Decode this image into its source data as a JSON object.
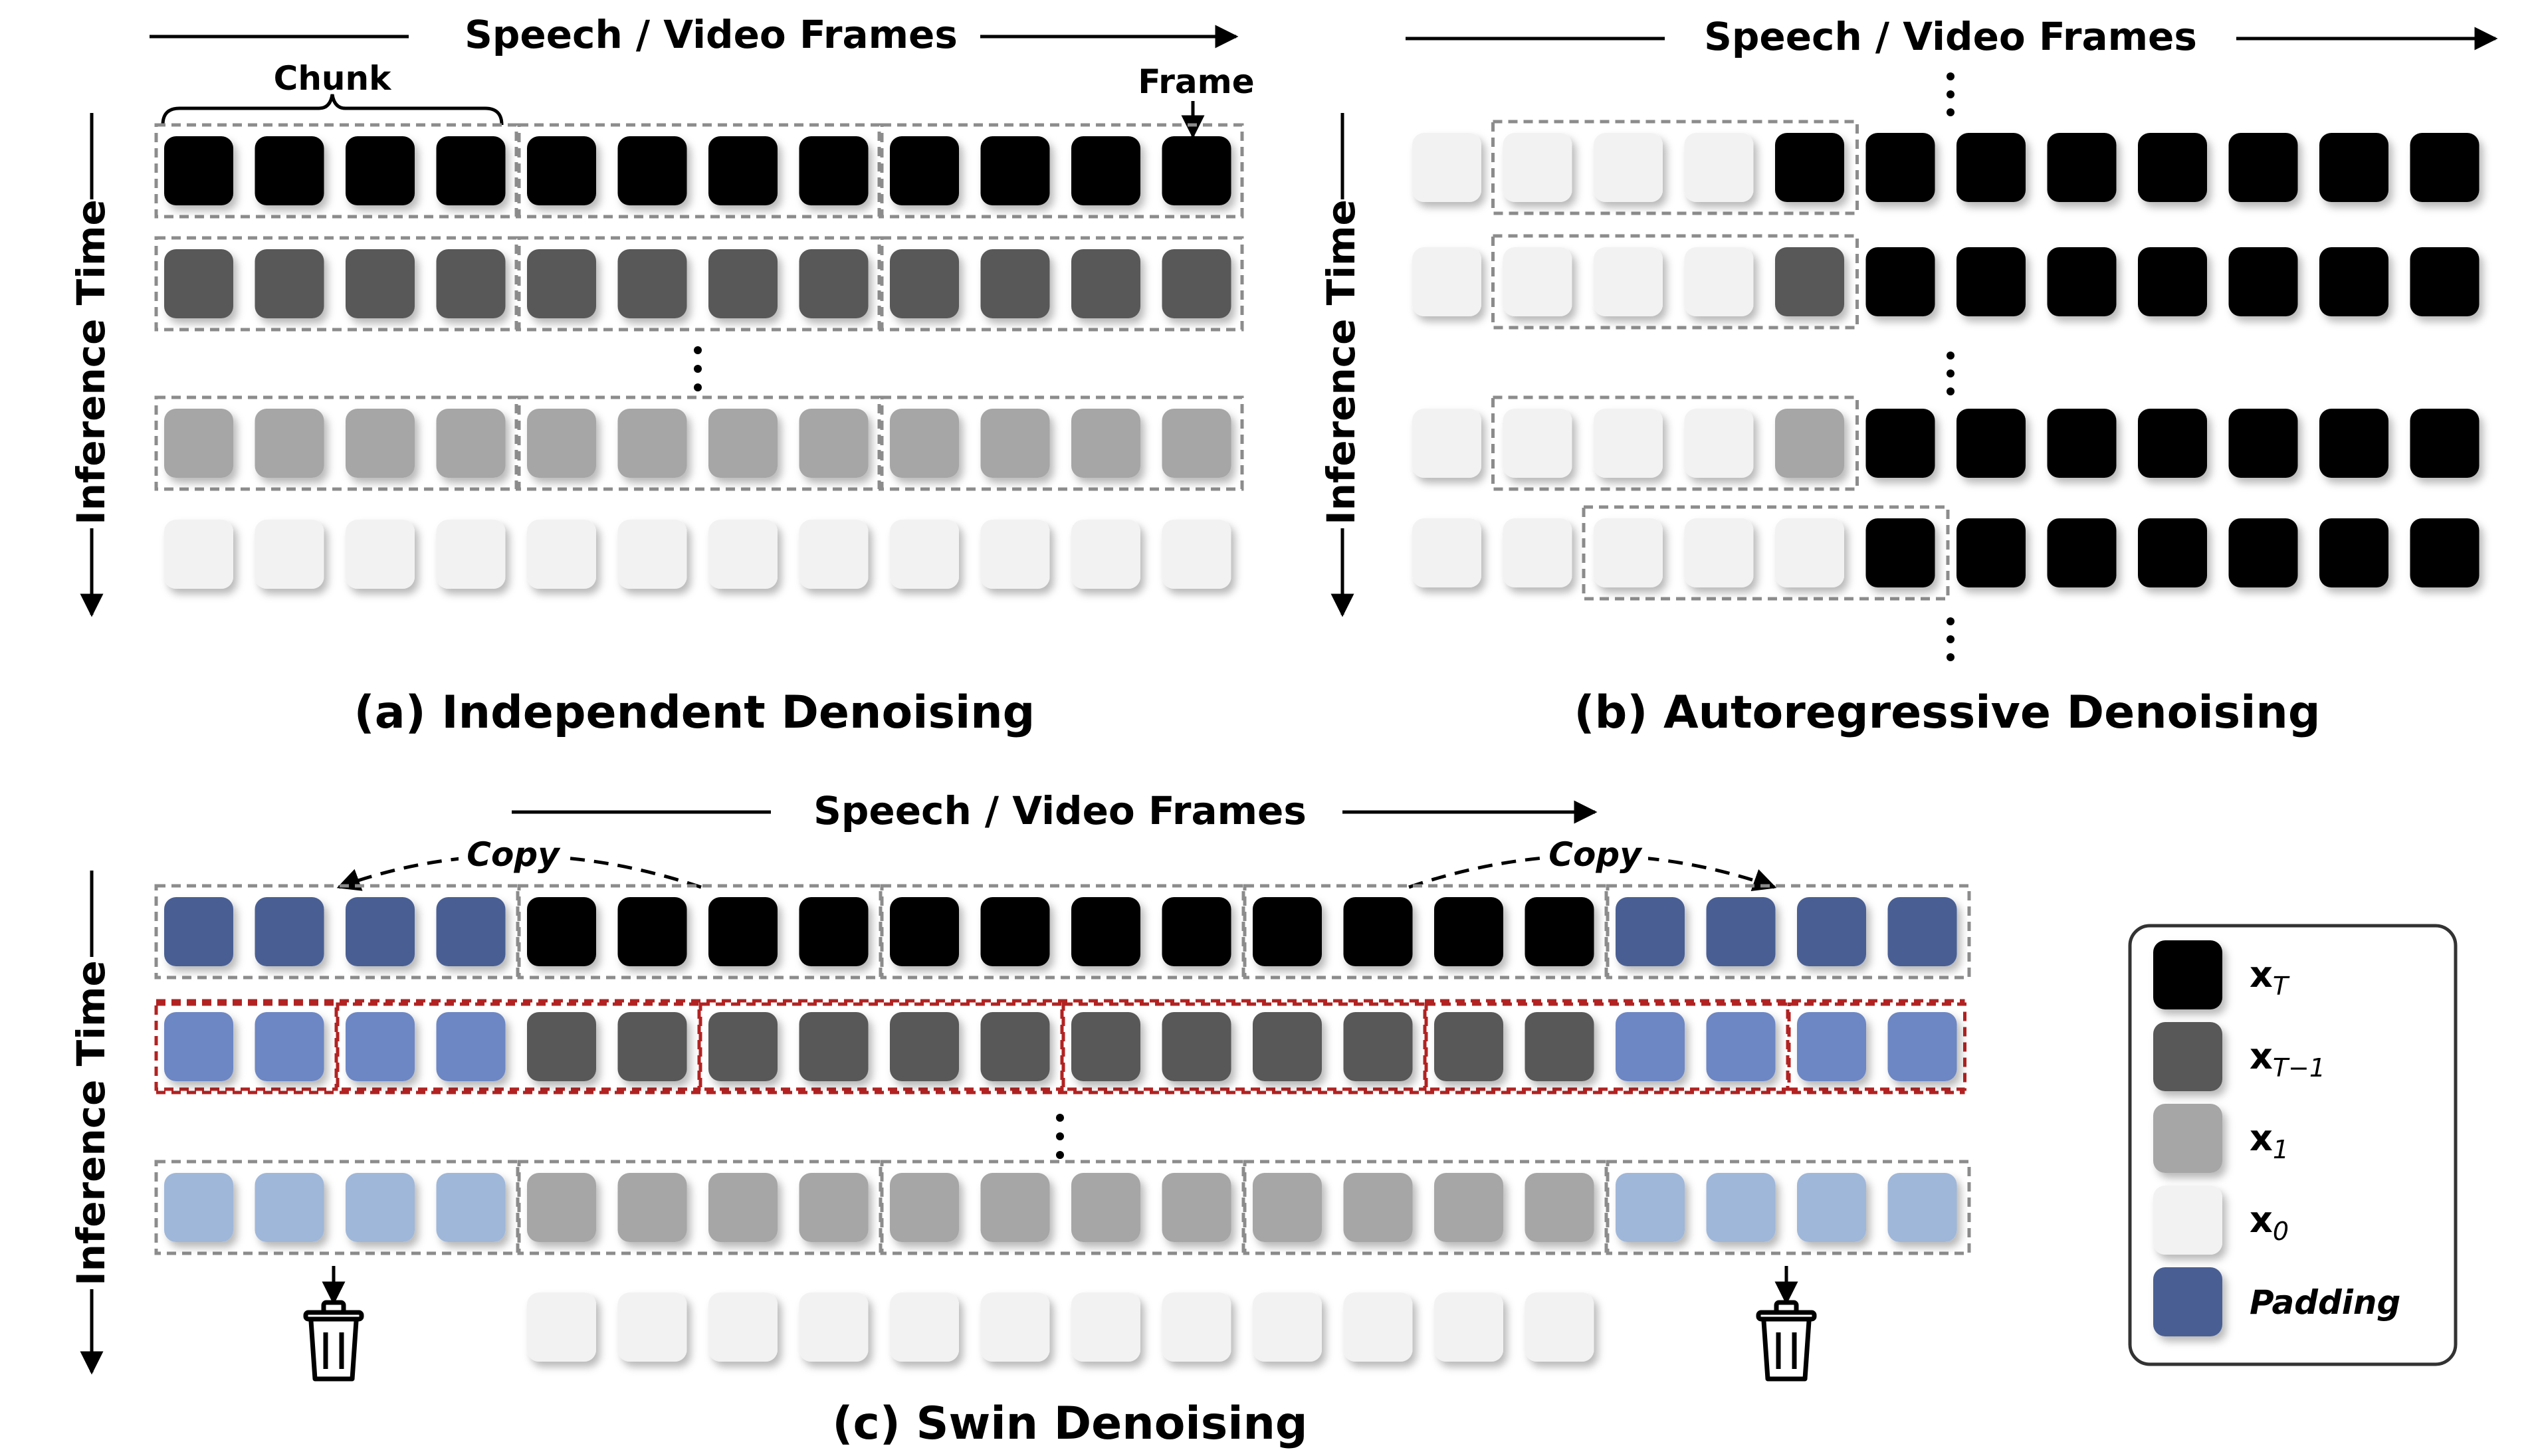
{
  "colors": {
    "x_T": "#000000",
    "x_T_minus_1": "#595959",
    "x_1": "#a6a6a6",
    "x_0": "#f2f2f2",
    "padding_dark": "#4a5f94",
    "padding_mid": "#6d87c4",
    "padding_light": "#9fb7d9",
    "chunk_border": "#8c8c8c",
    "window_border": "#b22222"
  },
  "panel_a": {
    "header": "Speech / Video Frames",
    "side_label": "Inference Time",
    "chunk_label": "Chunk",
    "frame_label": "Frame",
    "caption": "(a) Independent Denoising"
  },
  "panel_b": {
    "header": "Speech / Video Frames",
    "side_label": "Inference Time",
    "caption": "(b) Autoregressive Denoising"
  },
  "panel_c": {
    "header": "Speech / Video Frames",
    "side_label": "Inference Time",
    "copy_left": "Copy",
    "copy_right": "Copy",
    "caption": "(c) Swin Denoising"
  },
  "legend": {
    "items": [
      {
        "key": "x_T",
        "label_main": "x",
        "label_sub": "T"
      },
      {
        "key": "x_T_minus_1",
        "label_main": "x",
        "label_sub": "T−1"
      },
      {
        "key": "x_1",
        "label_main": "x",
        "label_sub": "1"
      },
      {
        "key": "x_0",
        "label_main": "x",
        "label_sub": "0"
      },
      {
        "key": "padding_dark",
        "label_main": "Padding",
        "label_sub": ""
      }
    ]
  }
}
